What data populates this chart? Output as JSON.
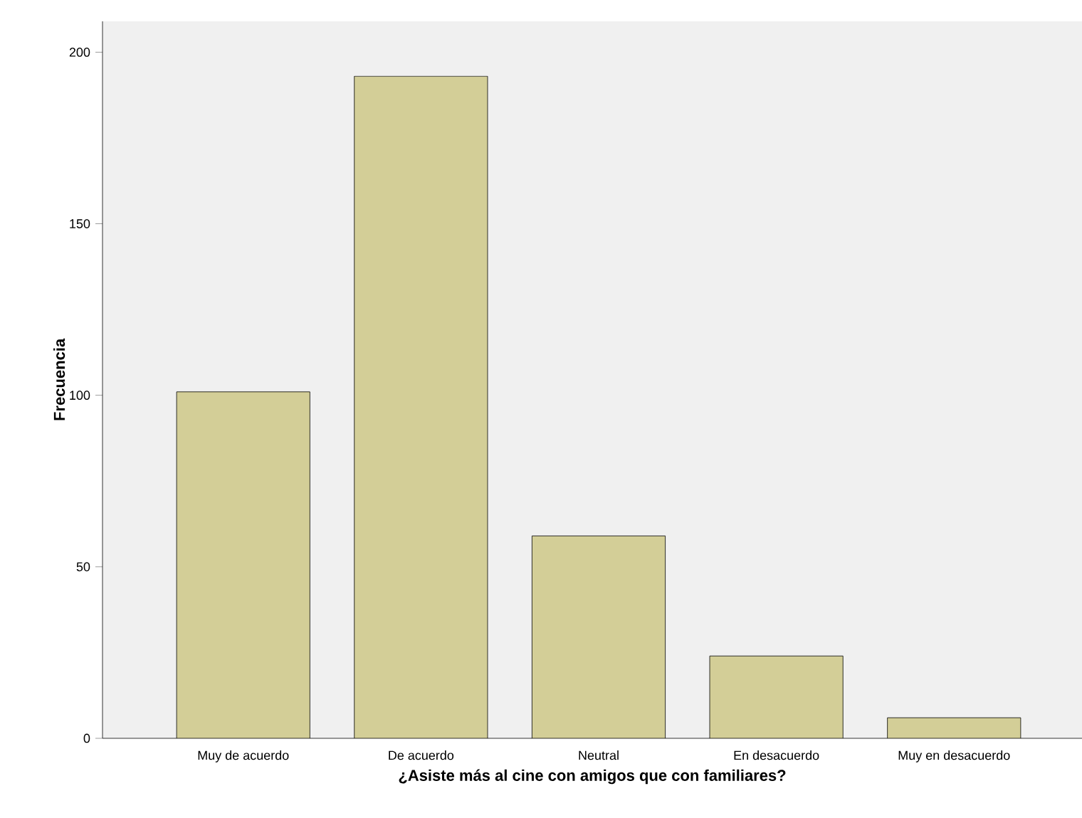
{
  "chart_data": {
    "type": "bar",
    "xlabel": "¿Asiste más al cine con amigos que con familiares?",
    "ylabel": "Frecuencia",
    "categories": [
      "Muy de acuerdo",
      "De acuerdo",
      "Neutral",
      "En desacuerdo",
      "Muy en desacuerdo"
    ],
    "values": [
      101,
      193,
      59,
      24,
      6
    ],
    "color": "#d3ce97",
    "ylim": [
      0,
      209
    ],
    "yticks": [
      0,
      50,
      100,
      150,
      200
    ]
  }
}
